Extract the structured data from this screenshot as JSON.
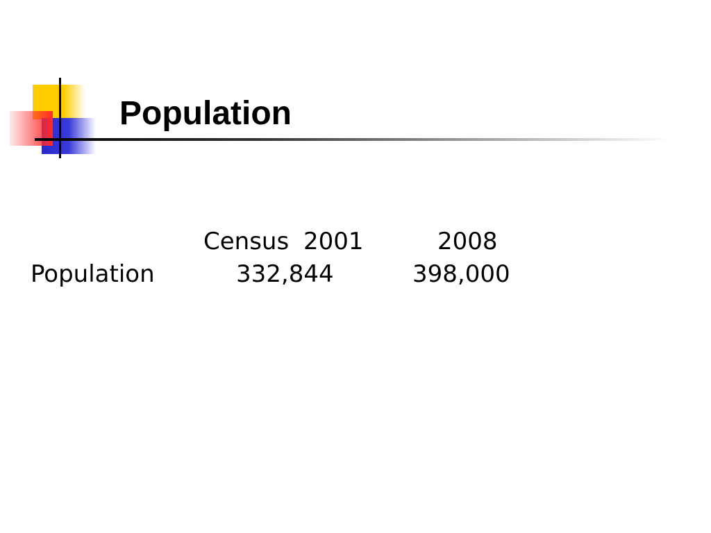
{
  "header": {
    "title": "Population"
  },
  "table": {
    "columns": [
      "Census 2001",
      "2008"
    ],
    "rows": [
      [
        "Population",
        "332,844",
        "398,000"
      ]
    ]
  }
}
